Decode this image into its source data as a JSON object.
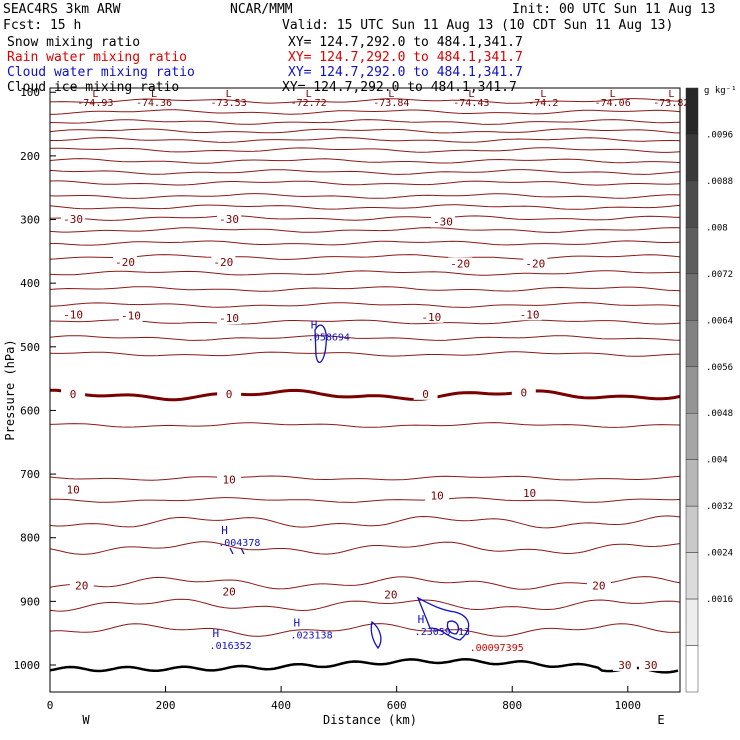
{
  "header": {
    "model": "SEAC4RS  3km ARW",
    "org": "NCAR/MMM",
    "init": "Init: 00 UTC Sun 11 Aug 13",
    "fcst": "Fcst:   15 h",
    "valid": "Valid: 15 UTC Sun 11 Aug 13 (10 CDT Sun 11 Aug 13)",
    "fields": [
      {
        "label": "Snow mixing ratio",
        "xy": "XY= 124.7,292.0 to 484.1,341.7",
        "color": "#000000"
      },
      {
        "label": "Rain water mixing ratio",
        "xy": "XY= 124.7,292.0 to 484.1,341.7",
        "color": "#e00000"
      },
      {
        "label": "Cloud water mixing ratio",
        "xy": "XY= 124.7,292.0 to 484.1,341.7",
        "color": "#1010c8"
      },
      {
        "label": "Cloud ice mixing ratio",
        "xy": "XY= 124.7,292.0 to 484.1,341.7",
        "color": "#000000"
      }
    ]
  },
  "chart_data": {
    "type": "contour cross-section",
    "xlabel": "Distance (km)",
    "ylabel": "Pressure (hPa)",
    "xlim": [
      0,
      1090
    ],
    "ylim": [
      1050,
      100
    ],
    "x_ticks": [
      0,
      200,
      400,
      600,
      800,
      1000
    ],
    "y_ticks": [
      100,
      200,
      300,
      400,
      500,
      600,
      700,
      800,
      900,
      1000
    ],
    "x_end_labels": {
      "left": "W",
      "right": "E"
    },
    "temperature_contour_labels": [
      {
        "text": "-30",
        "x": 40,
        "p": 302
      },
      {
        "text": "-30",
        "x": 310,
        "p": 302
      },
      {
        "text": "-30",
        "x": 680,
        "p": 306
      },
      {
        "text": "-20",
        "x": 130,
        "p": 370
      },
      {
        "text": "-20",
        "x": 300,
        "p": 370
      },
      {
        "text": "-20",
        "x": 710,
        "p": 372
      },
      {
        "text": "-20",
        "x": 840,
        "p": 372
      },
      {
        "text": "-10",
        "x": 40,
        "p": 452
      },
      {
        "text": "-10",
        "x": 140,
        "p": 454
      },
      {
        "text": "-10",
        "x": 310,
        "p": 458
      },
      {
        "text": "-10",
        "x": 660,
        "p": 456
      },
      {
        "text": "-10",
        "x": 830,
        "p": 452
      },
      {
        "text": "0",
        "x": 40,
        "p": 577
      },
      {
        "text": "0",
        "x": 310,
        "p": 577
      },
      {
        "text": "0",
        "x": 650,
        "p": 577
      },
      {
        "text": "0",
        "x": 820,
        "p": 575
      },
      {
        "text": "10",
        "x": 40,
        "p": 727
      },
      {
        "text": "10",
        "x": 310,
        "p": 712
      },
      {
        "text": "10",
        "x": 670,
        "p": 737
      },
      {
        "text": "10",
        "x": 830,
        "p": 733
      },
      {
        "text": "20",
        "x": 55,
        "p": 878
      },
      {
        "text": "20",
        "x": 310,
        "p": 888
      },
      {
        "text": "20",
        "x": 590,
        "p": 892
      },
      {
        "text": "20",
        "x": 950,
        "p": 878
      },
      {
        "text": "30",
        "x": 995,
        "p": 1003
      },
      {
        "text": "30",
        "x": 1040,
        "p": 1003
      }
    ],
    "top_low_labels": [
      {
        "text": "-74.93",
        "x": 85
      },
      {
        "text": "-74.36",
        "x": 195
      },
      {
        "text": "-73.53",
        "x": 335
      },
      {
        "text": "-72.72",
        "x": 485
      },
      {
        "text": "-73.84",
        "x": 640
      },
      {
        "text": "-74.43",
        "x": 790
      },
      {
        "text": "-74.2",
        "x": 925
      },
      {
        "text": "-74.06",
        "x": 1055
      },
      {
        "text": "-73.82",
        "x": 1165
      }
    ],
    "maxima": [
      {
        "symbol": "H",
        "value": ".058694",
        "x": 460,
        "p": 487,
        "color": "#1010c8"
      },
      {
        "symbol": "H",
        "value": ".004378",
        "x": 305,
        "p": 810,
        "color": "#1010c8"
      },
      {
        "symbol": "H",
        "value": ".016352",
        "x": 290,
        "p": 972,
        "color": "#1010c8"
      },
      {
        "symbol": "H",
        "value": ".023138",
        "x": 430,
        "p": 955,
        "color": "#1010c8"
      },
      {
        "symbol": "H",
        "value": ".23059",
        "x": 645,
        "p": 950,
        "color": "#1010c8"
      },
      {
        "symbol": "",
        "value": "13",
        "x": 720,
        "p": 950,
        "color": "#1010c8"
      },
      {
        "symbol": "",
        "value": ".00097395",
        "x": 740,
        "p": 975,
        "color": "#e00000"
      }
    ],
    "colorbar": {
      "unit": "g kg⁻¹",
      "labels": [
        ".0096",
        ".0088",
        ".008",
        ".0072",
        ".0064",
        ".0056",
        ".0048",
        ".004",
        ".0032",
        ".0024",
        ".0016"
      ]
    }
  }
}
